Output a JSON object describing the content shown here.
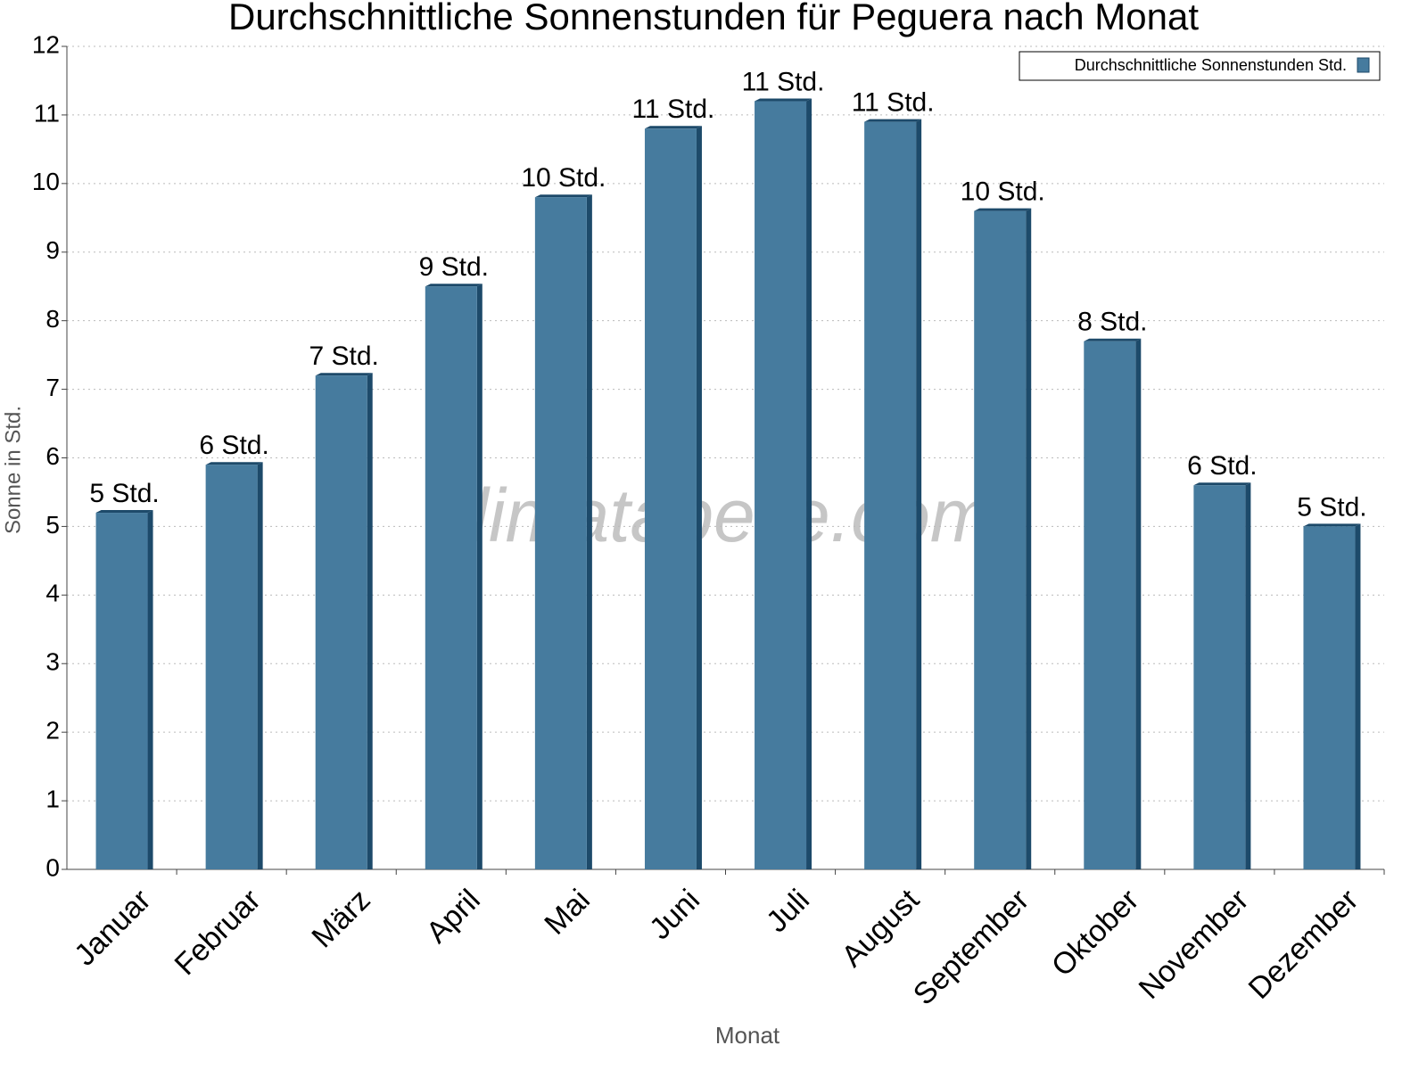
{
  "chart_data": {
    "type": "bar",
    "title": "Durchschnittliche Sonnenstunden für Peguera nach Monat",
    "watermark": "klimatabelle.com",
    "x_label": "Monat",
    "y_label": "Sonne in Std.",
    "categories": [
      "Januar",
      "Februar",
      "März",
      "April",
      "Mai",
      "Juni",
      "Juli",
      "August",
      "September",
      "Oktober",
      "November",
      "Dezember"
    ],
    "series": [
      {
        "name": "Durchschnittliche Sonnenstunden Std.",
        "color": "#467b9e",
        "values": [
          5.2,
          5.9,
          7.2,
          8.5,
          9.8,
          10.8,
          11.2,
          10.9,
          9.6,
          7.7,
          5.6,
          5.0
        ],
        "value_labels": [
          "5 Std.",
          "6 Std.",
          "7 Std.",
          "9 Std.",
          "10 Std.",
          "11 Std.",
          "11 Std.",
          "11 Std.",
          "10 Std.",
          "8 Std.",
          "6 Std.",
          "5 Std."
        ]
      }
    ],
    "ylim": [
      0,
      12
    ],
    "yticks": [
      0,
      1,
      2,
      3,
      4,
      5,
      6,
      7,
      8,
      9,
      10,
      11,
      12
    ],
    "grid": true,
    "legend": "top-right"
  }
}
